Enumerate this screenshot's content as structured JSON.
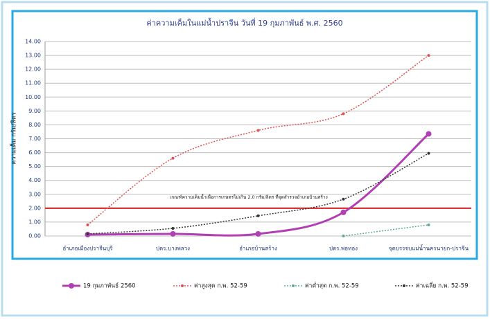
{
  "chart_data": {
    "type": "line",
    "title": "ค่าความเค็มในแม่น้ำปราจีน วันที่ 19 กุมภาพันธ์ พ.ศ. 2560",
    "y_label": "ความเค็ม กรัม/ลิตร",
    "categories": [
      "อำเภอเมืองปราจีนบุรี",
      "ปตร.บางพลวง",
      "อำเภอบ้านสร้าง",
      "ปตร.พอทอง",
      "จุดบรรจบแม่น้ำนครนายก-ปราจีน"
    ],
    "series": [
      {
        "name": "19 กุมภาพันธ์ 2560",
        "color": "#b13fb3",
        "style": "solid",
        "values": [
          0.1,
          0.15,
          0.15,
          1.7,
          7.35
        ]
      },
      {
        "name": "ค่าสูงสุด ก.พ. 52-59",
        "color": "#e05050",
        "style": "dotted",
        "values": [
          0.8,
          5.6,
          7.6,
          8.8,
          13.0
        ]
      },
      {
        "name": "ค่าต่ำสุด ก.พ. 52-59",
        "color": "#5fae8c",
        "style": "dotted",
        "values": [
          null,
          null,
          null,
          0.0,
          0.8
        ]
      },
      {
        "name": "ค่าเฉลี่ย ก.พ. 52-59",
        "color": "#333333",
        "style": "dotted",
        "values": [
          0.15,
          0.55,
          1.45,
          2.65,
          5.95
        ]
      }
    ],
    "threshold": {
      "value": 2.0,
      "color": "#d42020",
      "label": "เกณฑ์ความเค็มน้ำเพื่อการเกษตรไม่เกิน 2.0 กรัม/ลิตร  ที่จุดสำรวจอำเภอบ้านสร้าง"
    },
    "ylim": [
      0,
      14
    ],
    "yticks": [
      {
        "value": 0,
        "label": "0.00"
      },
      {
        "value": 1,
        "label": "1.00"
      },
      {
        "value": 2,
        "label": "2.00"
      },
      {
        "value": 3,
        "label": "3.00"
      },
      {
        "value": 4,
        "label": "4.00"
      },
      {
        "value": 5,
        "label": "5.00"
      },
      {
        "value": 6,
        "label": "6.00"
      },
      {
        "value": 7,
        "label": "7.00"
      },
      {
        "value": 8,
        "label": "8.00"
      },
      {
        "value": 9,
        "label": "9.00"
      },
      {
        "value": 10,
        "label": "10.00"
      },
      {
        "value": 11,
        "label": "11.00"
      },
      {
        "value": 12,
        "label": "12.00"
      },
      {
        "value": 13,
        "label": "13.00"
      },
      {
        "value": 14,
        "label": "14.00"
      }
    ],
    "grid": true
  }
}
